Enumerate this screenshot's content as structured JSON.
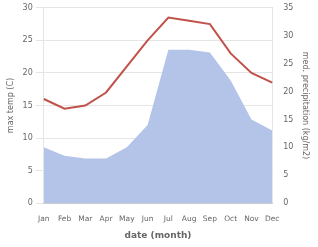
{
  "chart_data": {
    "type": "line",
    "xlabel": "date (month)",
    "ylabel": "max temp (C)",
    "y2label": "med. precipitation (kg/m2)",
    "categories": [
      "Jan",
      "Feb",
      "Mar",
      "Apr",
      "May",
      "Jun",
      "Jul",
      "Aug",
      "Sep",
      "Oct",
      "Nov",
      "Dec"
    ],
    "series": [
      {
        "type": "area",
        "axis": "y2",
        "color": "#b3c4e8",
        "values": [
          10,
          8.5,
          8,
          8,
          10,
          14,
          27.5,
          27.5,
          27,
          22,
          15,
          13
        ]
      },
      {
        "type": "line",
        "color": "#c0524a",
        "values": [
          16,
          14.5,
          15,
          17,
          21,
          25,
          28.5,
          28,
          27.5,
          23,
          20,
          18.5
        ]
      }
    ],
    "ylim": [
      0,
      30
    ],
    "yticks": [
      0,
      5,
      10,
      15,
      20,
      25,
      30
    ],
    "y2lim": [
      0,
      35
    ],
    "y2ticks": [
      0,
      5,
      10,
      15,
      20,
      25,
      30,
      35
    ],
    "grid": true,
    "background_color": "#ffffff"
  }
}
